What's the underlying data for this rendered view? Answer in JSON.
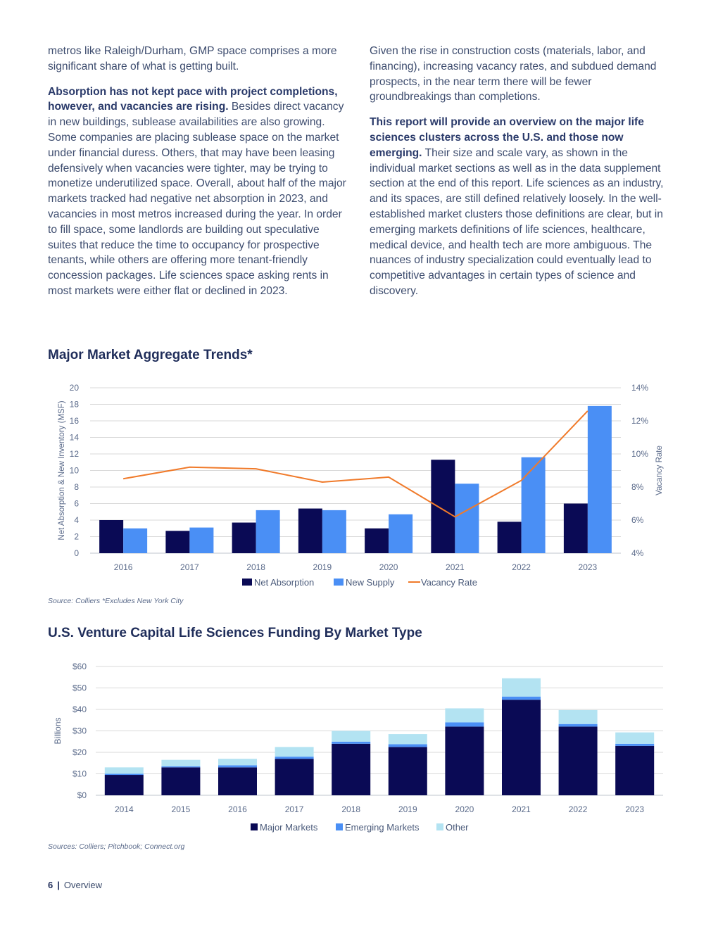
{
  "columns": {
    "left": [
      {
        "lead": "",
        "text": "metros like Raleigh/Durham, GMP space comprises a more significant share of what is getting built."
      },
      {
        "lead": "Absorption has not kept pace with project completions, however, and vacancies are rising.",
        "text": " Besides direct vacancy in new buildings, sublease availabilities are also growing. Some companies are placing sublease space on the market under financial duress. Others, that may have been leasing defensively when vacancies were tighter, may be trying to monetize underutilized space. Overall, about half of the major markets tracked had negative net absorption in 2023, and vacancies in most metros increased during the year. In order to fill space, some landlords are building out speculative suites that reduce the time to occupancy for prospective tenants, while others are offering more tenant-friendly concession packages. Life sciences space asking rents in most markets were either flat or declined in 2023."
      }
    ],
    "right": [
      {
        "lead": "",
        "text": "Given the rise in construction costs (materials, labor, and financing), increasing vacancy rates, and subdued demand prospects, in the near term there will be fewer groundbreakings than completions."
      },
      {
        "lead": "This report will provide an overview on the major life sciences clusters across the U.S. and those now emerging.",
        "text": " Their size and scale vary, as shown in the individual market sections as well as in the data supplement section at the end of this report. Life sciences as an industry, and its spaces, are still defined relatively loosely. In the well-established market clusters those definitions are clear, but in emerging markets definitions of life sciences, healthcare, medical device, and health tech are more ambiguous. The nuances of industry specialization could eventually lead to competitive advantages in certain types of science and discovery."
      }
    ]
  },
  "chart1_title": "Major Market Aggregate Trends*",
  "chart1_source": "Source: Colliers *Excludes New York City",
  "chart2_title": "U.S. Venture Capital Life Sciences Funding By Market Type",
  "chart2_source": "Sources: Colliers; Pitchbook; Connect.org",
  "footer": {
    "page": "6",
    "sep": "|",
    "section": "Overview"
  },
  "colors": {
    "dark_navy": "#0a0a55",
    "bright_blue": "#4a8ff5",
    "orange": "#f07a2a",
    "light_cyan": "#b3e3f2"
  },
  "chart_data": [
    {
      "type": "bar",
      "title": "Major Market Aggregate Trends*",
      "categories": [
        "2016",
        "2017",
        "2018",
        "2019",
        "2020",
        "2021",
        "2022",
        "2023"
      ],
      "ylabel": "Net Absorption & New Inventory (MSF)",
      "ylabel_right": "Vacancy Rate",
      "ylim": [
        0,
        20
      ],
      "y_ticks": [
        "0",
        "2",
        "4",
        "6",
        "8",
        "10",
        "12",
        "14",
        "16",
        "18",
        "20"
      ],
      "ylim_right": [
        4,
        14
      ],
      "y_right_ticks": [
        "4%",
        "6%",
        "8%",
        "10%",
        "12%",
        "14%"
      ],
      "grid": true,
      "legend": "bottom",
      "series": [
        {
          "name": "Net Absorption",
          "type": "bar",
          "values": [
            4.0,
            2.7,
            3.7,
            5.4,
            3.0,
            11.3,
            3.8,
            6.0
          ]
        },
        {
          "name": "New Supply",
          "type": "bar",
          "values": [
            3.0,
            3.1,
            5.2,
            5.2,
            4.7,
            8.4,
            11.6,
            17.8
          ]
        },
        {
          "name": "Vacancy Rate",
          "type": "line",
          "axis": "right",
          "values": [
            8.5,
            9.2,
            9.1,
            8.3,
            8.6,
            6.2,
            8.4,
            12.6
          ]
        }
      ]
    },
    {
      "type": "bar",
      "stacked": true,
      "title": "U.S. Venture Capital Life Sciences Funding By Market Type",
      "categories": [
        "2014",
        "2015",
        "2016",
        "2017",
        "2018",
        "2019",
        "2020",
        "2021",
        "2022",
        "2023"
      ],
      "ylabel": "Billions",
      "ylim": [
        0,
        60
      ],
      "y_ticks": [
        "$0",
        "$10",
        "$20",
        "$30",
        "$40",
        "$50",
        "$60"
      ],
      "grid": true,
      "legend": "bottom",
      "series": [
        {
          "name": "Major Markets",
          "values": [
            9.5,
            13,
            13,
            17,
            24,
            22.5,
            32,
            44.5,
            32,
            23
          ]
        },
        {
          "name": "Emerging Markets",
          "values": [
            0.5,
            0.5,
            1,
            1,
            1,
            1.3,
            2,
            1.5,
            1.2,
            1
          ]
        },
        {
          "name": "Other",
          "values": [
            3,
            3,
            3,
            4.5,
            5,
            4.7,
            6.5,
            8.5,
            6.5,
            5.3
          ]
        }
      ]
    }
  ]
}
